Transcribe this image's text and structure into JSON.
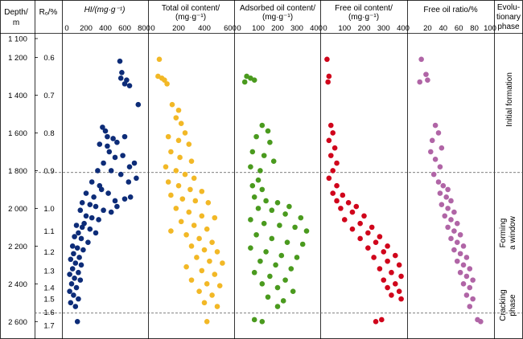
{
  "headers": {
    "depth": [
      "Depth/",
      "m"
    ],
    "ro": "Rₒ/%",
    "hi": "HI/(mg·g⁻¹)",
    "total_oil": [
      "Total oil content/",
      "(mg·g⁻¹)"
    ],
    "adsorbed_oil": [
      "Adsorbed oil content/",
      "(mg·g⁻¹)"
    ],
    "free_oil": [
      "Free oil content/",
      "(mg·g⁻¹)"
    ],
    "free_oil_ratio": "Free oil ratio/%",
    "phase": [
      "Evolu-",
      "tionary",
      "phase"
    ]
  },
  "phases": {
    "initial": "Initial formation",
    "forming": [
      "Forming",
      "a window"
    ],
    "cracking": [
      "Cracking",
      "phase"
    ]
  },
  "chart_data": {
    "type": "scatter",
    "depth_axis": {
      "range": [
        1100,
        2620
      ],
      "ticks": [
        1100,
        1200,
        1400,
        1600,
        1800,
        2000,
        2200,
        2400,
        2600
      ],
      "tick_labels": [
        "1 100",
        "1 200",
        "1 400",
        "1 600",
        "1 800",
        "2 000",
        "2 200",
        "2 400",
        "2 600"
      ]
    },
    "ro_axis": {
      "ticks": [
        {
          "label": "0.6",
          "depth": 1200
        },
        {
          "label": "0.7",
          "depth": 1400
        },
        {
          "label": "0.8",
          "depth": 1600
        },
        {
          "label": "0.9",
          "depth": 1800
        },
        {
          "label": "1.0",
          "depth": 2000
        },
        {
          "label": "1.1",
          "depth": 2120
        },
        {
          "label": "1.2",
          "depth": 2230
        },
        {
          "label": "1.3",
          "depth": 2330
        },
        {
          "label": "1.4",
          "depth": 2420
        },
        {
          "label": "1.5",
          "depth": 2480
        },
        {
          "label": "1.6",
          "depth": 2550
        },
        {
          "label": "1.7",
          "depth": 2620
        }
      ]
    },
    "boundaries": [
      1810,
      2555
    ],
    "panels": [
      {
        "name": "HI",
        "xlabel": "HI/(mg·g⁻¹)",
        "xlim": [
          0,
          800
        ],
        "xticks": [
          0,
          200,
          400,
          600,
          800
        ],
        "color": "#0d2c78",
        "points": [
          [
            550,
            1220
          ],
          [
            570,
            1280
          ],
          [
            560,
            1310
          ],
          [
            620,
            1320
          ],
          [
            600,
            1340
          ],
          [
            650,
            1350
          ],
          [
            740,
            1450
          ],
          [
            370,
            1570
          ],
          [
            400,
            1590
          ],
          [
            420,
            1620
          ],
          [
            480,
            1630
          ],
          [
            340,
            1660
          ],
          [
            420,
            1670
          ],
          [
            520,
            1650
          ],
          [
            600,
            1620
          ],
          [
            440,
            1700
          ],
          [
            500,
            1730
          ],
          [
            580,
            1720
          ],
          [
            700,
            1760
          ],
          [
            650,
            1780
          ],
          [
            380,
            1760
          ],
          [
            320,
            1800
          ],
          [
            460,
            1800
          ],
          [
            560,
            1820
          ],
          [
            640,
            1860
          ],
          [
            720,
            1840
          ],
          [
            260,
            1860
          ],
          [
            340,
            1880
          ],
          [
            200,
            1920
          ],
          [
            280,
            1940
          ],
          [
            360,
            1900
          ],
          [
            430,
            1920
          ],
          [
            500,
            1960
          ],
          [
            600,
            1950
          ],
          [
            660,
            1940
          ],
          [
            160,
            1970
          ],
          [
            240,
            1980
          ],
          [
            300,
            1990
          ],
          [
            380,
            2010
          ],
          [
            460,
            2020
          ],
          [
            520,
            1990
          ],
          [
            140,
            2010
          ],
          [
            200,
            2040
          ],
          [
            260,
            2050
          ],
          [
            330,
            2060
          ],
          [
            180,
            2080
          ],
          [
            100,
            2090
          ],
          [
            160,
            2100
          ],
          [
            240,
            2110
          ],
          [
            300,
            2130
          ],
          [
            120,
            2130
          ],
          [
            80,
            2150
          ],
          [
            150,
            2160
          ],
          [
            220,
            2180
          ],
          [
            60,
            2200
          ],
          [
            110,
            2210
          ],
          [
            170,
            2220
          ],
          [
            70,
            2240
          ],
          [
            130,
            2260
          ],
          [
            40,
            2270
          ],
          [
            90,
            2290
          ],
          [
            150,
            2300
          ],
          [
            60,
            2320
          ],
          [
            120,
            2340
          ],
          [
            30,
            2350
          ],
          [
            80,
            2370
          ],
          [
            140,
            2380
          ],
          [
            50,
            2400
          ],
          [
            100,
            2420
          ],
          [
            30,
            2440
          ],
          [
            70,
            2460
          ],
          [
            120,
            2480
          ],
          [
            40,
            2500
          ],
          [
            90,
            2520
          ],
          [
            110,
            2600
          ]
        ]
      },
      {
        "name": "Total oil content",
        "xlabel": "Total oil content/(mg·g⁻¹)",
        "xlim": [
          0,
          600
        ],
        "xticks": [
          0,
          200,
          400,
          600
        ],
        "color": "#f2b826",
        "points": [
          [
            50,
            1210
          ],
          [
            40,
            1300
          ],
          [
            70,
            1310
          ],
          [
            90,
            1320
          ],
          [
            110,
            1340
          ],
          [
            150,
            1450
          ],
          [
            200,
            1480
          ],
          [
            180,
            1520
          ],
          [
            220,
            1550
          ],
          [
            250,
            1600
          ],
          [
            120,
            1620
          ],
          [
            200,
            1640
          ],
          [
            280,
            1660
          ],
          [
            140,
            1700
          ],
          [
            210,
            1730
          ],
          [
            300,
            1750
          ],
          [
            100,
            1780
          ],
          [
            180,
            1800
          ],
          [
            250,
            1820
          ],
          [
            320,
            1840
          ],
          [
            120,
            1860
          ],
          [
            200,
            1880
          ],
          [
            290,
            1900
          ],
          [
            380,
            1910
          ],
          [
            140,
            1930
          ],
          [
            230,
            1950
          ],
          [
            330,
            1960
          ],
          [
            430,
            1970
          ],
          [
            180,
            2000
          ],
          [
            280,
            2020
          ],
          [
            380,
            2040
          ],
          [
            480,
            2050
          ],
          [
            220,
            2070
          ],
          [
            320,
            2090
          ],
          [
            420,
            2110
          ],
          [
            140,
            2120
          ],
          [
            260,
            2140
          ],
          [
            360,
            2160
          ],
          [
            460,
            2180
          ],
          [
            300,
            2200
          ],
          [
            400,
            2220
          ],
          [
            500,
            2230
          ],
          [
            340,
            2260
          ],
          [
            440,
            2280
          ],
          [
            540,
            2290
          ],
          [
            260,
            2310
          ],
          [
            380,
            2330
          ],
          [
            480,
            2350
          ],
          [
            300,
            2380
          ],
          [
            420,
            2400
          ],
          [
            520,
            2410
          ],
          [
            360,
            2440
          ],
          [
            460,
            2460
          ],
          [
            400,
            2500
          ],
          [
            500,
            2520
          ],
          [
            420,
            2600
          ]
        ]
      },
      {
        "name": "Adsorbed oil content",
        "xlabel": "Adsorbed oil content/(mg·g⁻¹)",
        "xlim": [
          0,
          400
        ],
        "xticks": [
          0,
          100,
          200,
          300,
          400
        ],
        "color": "#4a9a1e",
        "points": [
          [
            40,
            1300
          ],
          [
            60,
            1310
          ],
          [
            30,
            1330
          ],
          [
            80,
            1320
          ],
          [
            120,
            1560
          ],
          [
            150,
            1590
          ],
          [
            90,
            1620
          ],
          [
            160,
            1650
          ],
          [
            70,
            1700
          ],
          [
            130,
            1720
          ],
          [
            180,
            1750
          ],
          [
            60,
            1780
          ],
          [
            110,
            1800
          ],
          [
            100,
            1850
          ],
          [
            70,
            1880
          ],
          [
            120,
            1900
          ],
          [
            80,
            1940
          ],
          [
            140,
            1960
          ],
          [
            200,
            1970
          ],
          [
            260,
            1990
          ],
          [
            100,
            2000
          ],
          [
            170,
            2010
          ],
          [
            240,
            2030
          ],
          [
            320,
            2050
          ],
          [
            60,
            2060
          ],
          [
            130,
            2080
          ],
          [
            210,
            2090
          ],
          [
            290,
            2100
          ],
          [
            350,
            2120
          ],
          [
            90,
            2140
          ],
          [
            170,
            2160
          ],
          [
            250,
            2180
          ],
          [
            330,
            2190
          ],
          [
            60,
            2210
          ],
          [
            140,
            2230
          ],
          [
            220,
            2250
          ],
          [
            300,
            2260
          ],
          [
            110,
            2280
          ],
          [
            190,
            2300
          ],
          [
            270,
            2320
          ],
          [
            80,
            2340
          ],
          [
            160,
            2360
          ],
          [
            240,
            2380
          ],
          [
            120,
            2400
          ],
          [
            200,
            2420
          ],
          [
            280,
            2440
          ],
          [
            150,
            2470
          ],
          [
            230,
            2490
          ],
          [
            200,
            2520
          ],
          [
            80,
            2590
          ],
          [
            120,
            2600
          ]
        ]
      },
      {
        "name": "Free oil content",
        "xlabel": "Free oil content/(mg·g⁻¹)",
        "xlim": [
          0,
          400
        ],
        "xticks": [
          0,
          100,
          200,
          300,
          400
        ],
        "color": "#d0041b",
        "points": [
          [
            10,
            1210
          ],
          [
            20,
            1300
          ],
          [
            15,
            1330
          ],
          [
            30,
            1560
          ],
          [
            40,
            1600
          ],
          [
            20,
            1640
          ],
          [
            50,
            1680
          ],
          [
            30,
            1720
          ],
          [
            60,
            1760
          ],
          [
            40,
            1800
          ],
          [
            20,
            1840
          ],
          [
            60,
            1880
          ],
          [
            40,
            1920
          ],
          [
            90,
            1930
          ],
          [
            60,
            1960
          ],
          [
            120,
            1970
          ],
          [
            160,
            1990
          ],
          [
            80,
            2000
          ],
          [
            140,
            2020
          ],
          [
            200,
            2040
          ],
          [
            100,
            2060
          ],
          [
            180,
            2080
          ],
          [
            240,
            2100
          ],
          [
            140,
            2110
          ],
          [
            220,
            2130
          ],
          [
            280,
            2150
          ],
          [
            180,
            2160
          ],
          [
            260,
            2180
          ],
          [
            320,
            2200
          ],
          [
            220,
            2210
          ],
          [
            300,
            2230
          ],
          [
            360,
            2250
          ],
          [
            250,
            2260
          ],
          [
            320,
            2280
          ],
          [
            380,
            2300
          ],
          [
            280,
            2320
          ],
          [
            340,
            2340
          ],
          [
            390,
            2360
          ],
          [
            300,
            2380
          ],
          [
            360,
            2400
          ],
          [
            320,
            2420
          ],
          [
            380,
            2440
          ],
          [
            340,
            2460
          ],
          [
            390,
            2480
          ],
          [
            260,
            2600
          ],
          [
            290,
            2590
          ]
        ]
      },
      {
        "name": "Free oil ratio",
        "xlabel": "Free oil ratio/%",
        "xlim": [
          0,
          100
        ],
        "xticks": [
          20,
          40,
          60,
          80,
          100
        ],
        "color": "#b065a6",
        "points": [
          [
            12,
            1210
          ],
          [
            18,
            1290
          ],
          [
            20,
            1320
          ],
          [
            10,
            1330
          ],
          [
            30,
            1560
          ],
          [
            34,
            1600
          ],
          [
            26,
            1640
          ],
          [
            38,
            1680
          ],
          [
            24,
            1700
          ],
          [
            30,
            1740
          ],
          [
            36,
            1780
          ],
          [
            28,
            1820
          ],
          [
            34,
            1860
          ],
          [
            40,
            1880
          ],
          [
            46,
            1900
          ],
          [
            36,
            1920
          ],
          [
            44,
            1940
          ],
          [
            50,
            1960
          ],
          [
            38,
            1980
          ],
          [
            46,
            2000
          ],
          [
            54,
            2020
          ],
          [
            42,
            2040
          ],
          [
            50,
            2060
          ],
          [
            58,
            2080
          ],
          [
            46,
            2100
          ],
          [
            54,
            2120
          ],
          [
            62,
            2140
          ],
          [
            50,
            2160
          ],
          [
            58,
            2180
          ],
          [
            66,
            2200
          ],
          [
            54,
            2220
          ],
          [
            62,
            2240
          ],
          [
            70,
            2260
          ],
          [
            58,
            2280
          ],
          [
            66,
            2300
          ],
          [
            74,
            2320
          ],
          [
            62,
            2340
          ],
          [
            70,
            2360
          ],
          [
            78,
            2380
          ],
          [
            66,
            2400
          ],
          [
            74,
            2420
          ],
          [
            70,
            2460
          ],
          [
            78,
            2480
          ],
          [
            74,
            2520
          ],
          [
            84,
            2590
          ],
          [
            88,
            2600
          ]
        ]
      }
    ]
  }
}
